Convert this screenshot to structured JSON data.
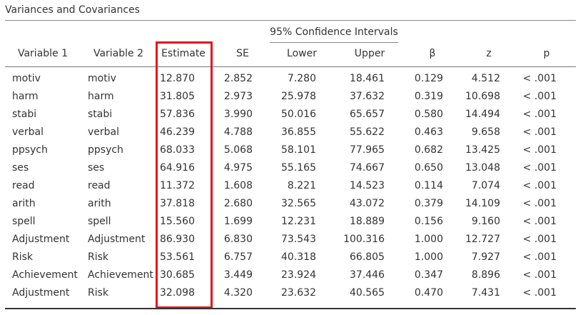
{
  "title": "Variances and Covariances",
  "ci_header": "95% Confidence Intervals",
  "headers": {
    "var1": "Variable 1",
    "var2": "Variable 2",
    "estimate": "Estimate",
    "se": "SE",
    "lower": "Lower",
    "upper": "Upper",
    "beta": "β",
    "z": "z",
    "p": "p"
  },
  "highlight_color": "#e4171c",
  "rows": [
    {
      "v1": "motiv",
      "v2": "motiv",
      "est": "12.870",
      "se": "2.852",
      "lo": "7.280",
      "up": "18.461",
      "beta": "0.129",
      "z": "4.512",
      "p": "< .001"
    },
    {
      "v1": "harm",
      "v2": "harm",
      "est": "31.805",
      "se": "2.973",
      "lo": "25.978",
      "up": "37.632",
      "beta": "0.319",
      "z": "10.698",
      "p": "< .001"
    },
    {
      "v1": "stabi",
      "v2": "stabi",
      "est": "57.836",
      "se": "3.990",
      "lo": "50.016",
      "up": "65.657",
      "beta": "0.580",
      "z": "14.494",
      "p": "< .001"
    },
    {
      "v1": "verbal",
      "v2": "verbal",
      "est": "46.239",
      "se": "4.788",
      "lo": "36.855",
      "up": "55.622",
      "beta": "0.463",
      "z": "9.658",
      "p": "< .001"
    },
    {
      "v1": "ppsych",
      "v2": "ppsych",
      "est": "68.033",
      "se": "5.068",
      "lo": "58.101",
      "up": "77.965",
      "beta": "0.682",
      "z": "13.425",
      "p": "< .001"
    },
    {
      "v1": "ses",
      "v2": "ses",
      "est": "64.916",
      "se": "4.975",
      "lo": "55.165",
      "up": "74.667",
      "beta": "0.650",
      "z": "13.048",
      "p": "< .001"
    },
    {
      "v1": "read",
      "v2": "read",
      "est": "11.372",
      "se": "1.608",
      "lo": "8.221",
      "up": "14.523",
      "beta": "0.114",
      "z": "7.074",
      "p": "< .001"
    },
    {
      "v1": "arith",
      "v2": "arith",
      "est": "37.818",
      "se": "2.680",
      "lo": "32.565",
      "up": "43.072",
      "beta": "0.379",
      "z": "14.109",
      "p": "< .001"
    },
    {
      "v1": "spell",
      "v2": "spell",
      "est": "15.560",
      "se": "1.699",
      "lo": "12.231",
      "up": "18.889",
      "beta": "0.156",
      "z": "9.160",
      "p": "< .001"
    },
    {
      "v1": "Adjustment",
      "v2": "Adjustment",
      "est": "86.930",
      "se": "6.830",
      "lo": "73.543",
      "up": "100.316",
      "beta": "1.000",
      "z": "12.727",
      "p": "< .001"
    },
    {
      "v1": "Risk",
      "v2": "Risk",
      "est": "53.561",
      "se": "6.757",
      "lo": "40.318",
      "up": "66.805",
      "beta": "1.000",
      "z": "7.927",
      "p": "< .001"
    },
    {
      "v1": "Achievement",
      "v2": "Achievement",
      "est": "30.685",
      "se": "3.449",
      "lo": "23.924",
      "up": "37.446",
      "beta": "0.347",
      "z": "8.896",
      "p": "< .001"
    },
    {
      "v1": "Adjustment",
      "v2": "Risk",
      "est": "32.098",
      "se": "4.320",
      "lo": "23.632",
      "up": "40.565",
      "beta": "0.470",
      "z": "7.431",
      "p": "< .001"
    }
  ]
}
